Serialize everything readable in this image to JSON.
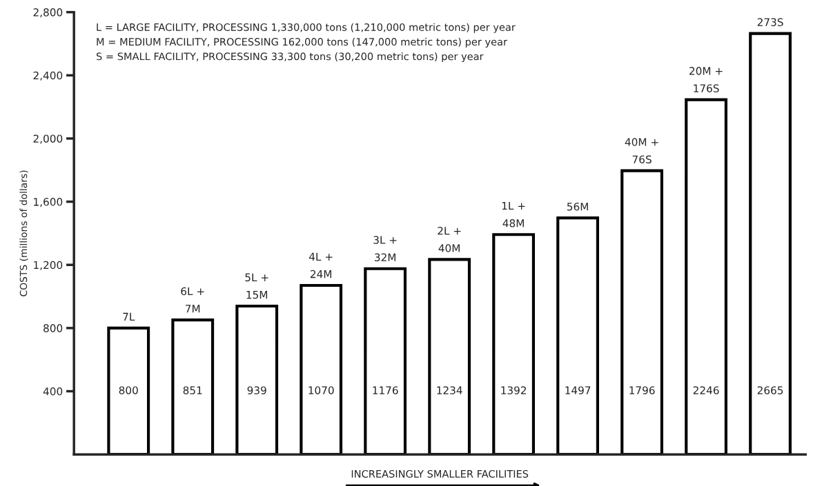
{
  "chart_data": {
    "type": "bar",
    "categories": [
      "7L",
      "6L +\n7M",
      "5L +\n15M",
      "4L +\n24M",
      "3L +\n32M",
      "2L +\n40M",
      "1L +\n48M",
      "56M",
      "40M +\n76S",
      "20M +\n176S",
      "273S"
    ],
    "values": [
      800,
      851,
      939,
      1070,
      1176,
      1234,
      1392,
      1497,
      1796,
      2246,
      2665
    ],
    "color": "#ffffff",
    "data_labels": true,
    "xlabel": "INCREASINGLY SMALLER FACILITIES",
    "ylabel": "COSTS (millions of dollars)",
    "ylim": [
      0,
      2800
    ],
    "yticks": [
      {
        "value": 400,
        "label": "400"
      },
      {
        "value": 800,
        "label": "800"
      },
      {
        "value": 1200,
        "label": "1,200"
      },
      {
        "value": 1600,
        "label": "1,600"
      },
      {
        "value": 2000,
        "label": "2,000"
      },
      {
        "value": 2400,
        "label": "2,400"
      },
      {
        "value": 2800,
        "label": "2,800"
      }
    ],
    "grid": false,
    "legend": false,
    "annotations": [
      "L = LARGE FACILITY, PROCESSING 1,330,000 tons (1,210,000 metric tons) per year",
      "M = MEDIUM FACILITY, PROCESSING 162,000 tons (147,000 metric tons) per year",
      "S = SMALL FACILITY, PROCESSING 33,300 tons (30,200 metric tons) per year"
    ]
  }
}
